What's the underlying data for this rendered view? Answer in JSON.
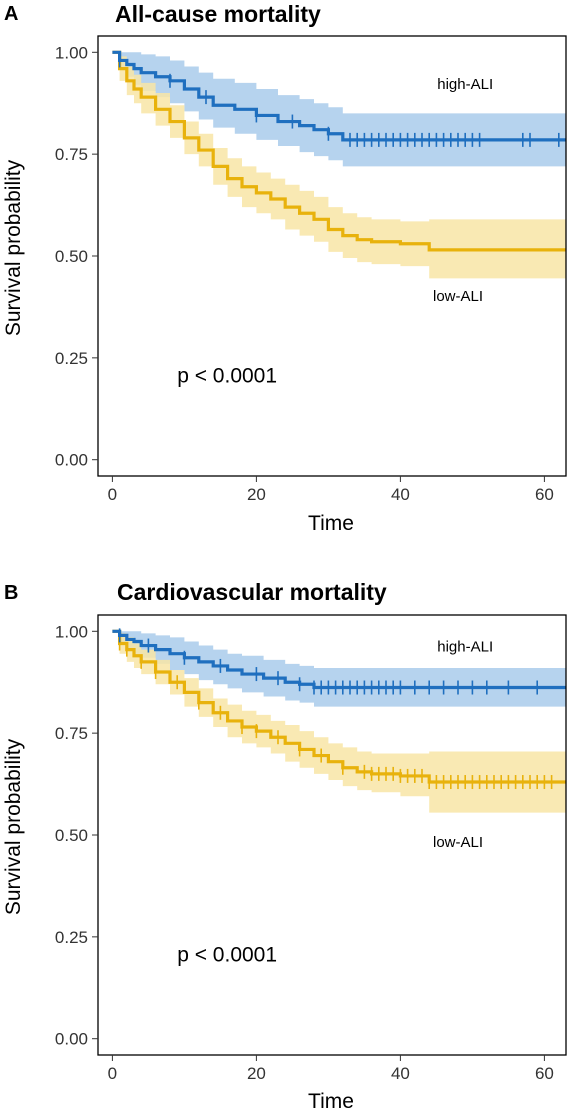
{
  "colors": {
    "high": "#1f6fbf",
    "high_band": "#a9cbeb",
    "low": "#e8b20c",
    "low_band": "#f8e5a6"
  },
  "chart_data": [
    {
      "type": "line",
      "panel": "A",
      "title": "All-cause mortality",
      "xlabel": "Time",
      "ylabel": "Survival probability",
      "xlim": [
        -2,
        63
      ],
      "ylim": [
        -0.04,
        1.04
      ],
      "xticks": [
        0,
        20,
        40,
        60
      ],
      "yticks": [
        0.0,
        0.25,
        0.5,
        0.75,
        1.0
      ],
      "xtick_labels": [
        "0",
        "20",
        "40",
        "60"
      ],
      "ytick_labels": [
        "0.00",
        "0.25",
        "0.50",
        "0.75",
        "1.00"
      ],
      "grid": false,
      "annotation": "p < 0.0001",
      "series": [
        {
          "name": "high-ALI",
          "color_key": "high",
          "x": [
            0,
            1,
            2,
            3,
            4,
            6,
            8,
            10,
            12,
            14,
            17,
            20,
            23,
            26,
            28,
            30,
            32,
            63
          ],
          "y": [
            1.0,
            0.98,
            0.97,
            0.96,
            0.95,
            0.94,
            0.93,
            0.91,
            0.89,
            0.87,
            0.86,
            0.845,
            0.83,
            0.82,
            0.81,
            0.8,
            0.785,
            0.785
          ],
          "upper": [
            1.0,
            1.0,
            1.0,
            1.0,
            0.995,
            0.99,
            0.98,
            0.965,
            0.95,
            0.935,
            0.925,
            0.91,
            0.895,
            0.885,
            0.875,
            0.865,
            0.85,
            0.85
          ],
          "lower": [
            1.0,
            0.96,
            0.94,
            0.92,
            0.905,
            0.89,
            0.875,
            0.855,
            0.835,
            0.815,
            0.8,
            0.785,
            0.77,
            0.755,
            0.745,
            0.735,
            0.72,
            0.72
          ],
          "censor_x": [
            1,
            8,
            13,
            20,
            25,
            30,
            33,
            34,
            35,
            36,
            37,
            38,
            39,
            40,
            41,
            42,
            43,
            44,
            45,
            46,
            47,
            48,
            49,
            50,
            51,
            57,
            58,
            62
          ]
        },
        {
          "name": "low-ALI",
          "color_key": "low",
          "x": [
            0,
            1,
            2,
            3,
            4,
            6,
            8,
            10,
            12,
            14,
            16,
            18,
            20,
            22,
            24,
            26,
            28,
            30,
            32,
            34,
            36,
            40,
            44,
            63
          ],
          "y": [
            1.0,
            0.96,
            0.93,
            0.91,
            0.89,
            0.86,
            0.83,
            0.79,
            0.76,
            0.72,
            0.69,
            0.67,
            0.655,
            0.64,
            0.62,
            0.605,
            0.59,
            0.565,
            0.55,
            0.54,
            0.535,
            0.53,
            0.515,
            0.515
          ],
          "upper": [
            1.0,
            0.99,
            0.965,
            0.945,
            0.925,
            0.9,
            0.87,
            0.83,
            0.8,
            0.765,
            0.74,
            0.72,
            0.705,
            0.69,
            0.675,
            0.66,
            0.645,
            0.62,
            0.605,
            0.595,
            0.59,
            0.585,
            0.59,
            0.59
          ],
          "lower": [
            1.0,
            0.93,
            0.895,
            0.875,
            0.85,
            0.82,
            0.79,
            0.75,
            0.72,
            0.675,
            0.645,
            0.62,
            0.605,
            0.59,
            0.565,
            0.55,
            0.535,
            0.51,
            0.495,
            0.485,
            0.48,
            0.475,
            0.445,
            0.445
          ]
        }
      ]
    },
    {
      "type": "line",
      "panel": "B",
      "title": "Cardiovascular mortality",
      "xlabel": "Time",
      "ylabel": "Survival probability",
      "xlim": [
        -2,
        63
      ],
      "ylim": [
        -0.04,
        1.04
      ],
      "xticks": [
        0,
        20,
        40,
        60
      ],
      "yticks": [
        0.0,
        0.25,
        0.5,
        0.75,
        1.0
      ],
      "xtick_labels": [
        "0",
        "20",
        "40",
        "60"
      ],
      "ytick_labels": [
        "0.00",
        "0.25",
        "0.50",
        "0.75",
        "1.00"
      ],
      "grid": false,
      "annotation": "p < 0.0001",
      "series": [
        {
          "name": "high-ALI",
          "color_key": "high",
          "x": [
            0,
            1,
            2,
            3,
            4,
            6,
            8,
            10,
            12,
            14,
            16,
            18,
            21,
            24,
            26,
            28,
            63
          ],
          "y": [
            1.0,
            0.99,
            0.98,
            0.975,
            0.965,
            0.955,
            0.945,
            0.935,
            0.925,
            0.915,
            0.905,
            0.895,
            0.885,
            0.875,
            0.87,
            0.862,
            0.862
          ],
          "upper": [
            1.0,
            1.0,
            1.0,
            1.0,
            0.995,
            0.99,
            0.985,
            0.975,
            0.965,
            0.955,
            0.945,
            0.94,
            0.93,
            0.92,
            0.915,
            0.91,
            0.91
          ],
          "lower": [
            1.0,
            0.97,
            0.955,
            0.945,
            0.935,
            0.92,
            0.905,
            0.895,
            0.88,
            0.87,
            0.86,
            0.85,
            0.84,
            0.83,
            0.825,
            0.815,
            0.815
          ],
          "censor_x": [
            1,
            5,
            10,
            15,
            20,
            23,
            26,
            28,
            29,
            30,
            31,
            32,
            33,
            34,
            35,
            36,
            37,
            38,
            39,
            40,
            42,
            44,
            46,
            48,
            50,
            52,
            55,
            59
          ]
        },
        {
          "name": "low-ALI",
          "color_key": "low",
          "x": [
            0,
            1,
            2,
            3,
            4,
            6,
            8,
            10,
            12,
            14,
            16,
            18,
            20,
            22,
            24,
            26,
            28,
            30,
            32,
            34,
            36,
            40,
            44,
            63
          ],
          "y": [
            1.0,
            0.97,
            0.955,
            0.94,
            0.925,
            0.9,
            0.875,
            0.85,
            0.825,
            0.8,
            0.78,
            0.765,
            0.755,
            0.74,
            0.725,
            0.71,
            0.695,
            0.68,
            0.665,
            0.655,
            0.65,
            0.645,
            0.63,
            0.63
          ],
          "upper": [
            1.0,
            0.995,
            0.985,
            0.97,
            0.955,
            0.93,
            0.905,
            0.885,
            0.86,
            0.835,
            0.82,
            0.805,
            0.795,
            0.78,
            0.77,
            0.755,
            0.74,
            0.725,
            0.715,
            0.705,
            0.7,
            0.7,
            0.705,
            0.705
          ],
          "lower": [
            1.0,
            0.945,
            0.925,
            0.91,
            0.895,
            0.87,
            0.845,
            0.815,
            0.79,
            0.765,
            0.74,
            0.725,
            0.715,
            0.7,
            0.68,
            0.665,
            0.65,
            0.635,
            0.62,
            0.61,
            0.605,
            0.595,
            0.555,
            0.555
          ],
          "censor_x": [
            1,
            2,
            4,
            6,
            9,
            12,
            15,
            18,
            20,
            23,
            26,
            29,
            32,
            35,
            36,
            37,
            38,
            39,
            40,
            41,
            42,
            43,
            44,
            45,
            46,
            47,
            48,
            49,
            50,
            51,
            52,
            53,
            54,
            55,
            56,
            57,
            58,
            59,
            60,
            61
          ]
        }
      ]
    }
  ],
  "series_labels": {
    "A": [
      {
        "text": "high-ALI",
        "x": 49,
        "y": 0.91
      },
      {
        "text": "low-ALI",
        "x": 48,
        "y": 0.39
      }
    ],
    "B": [
      {
        "text": "high-ALI",
        "x": 49,
        "y": 0.95
      },
      {
        "text": "low-ALI",
        "x": 48,
        "y": 0.47
      }
    ]
  },
  "annotation_pos": {
    "x": 9,
    "y": 0.19
  }
}
